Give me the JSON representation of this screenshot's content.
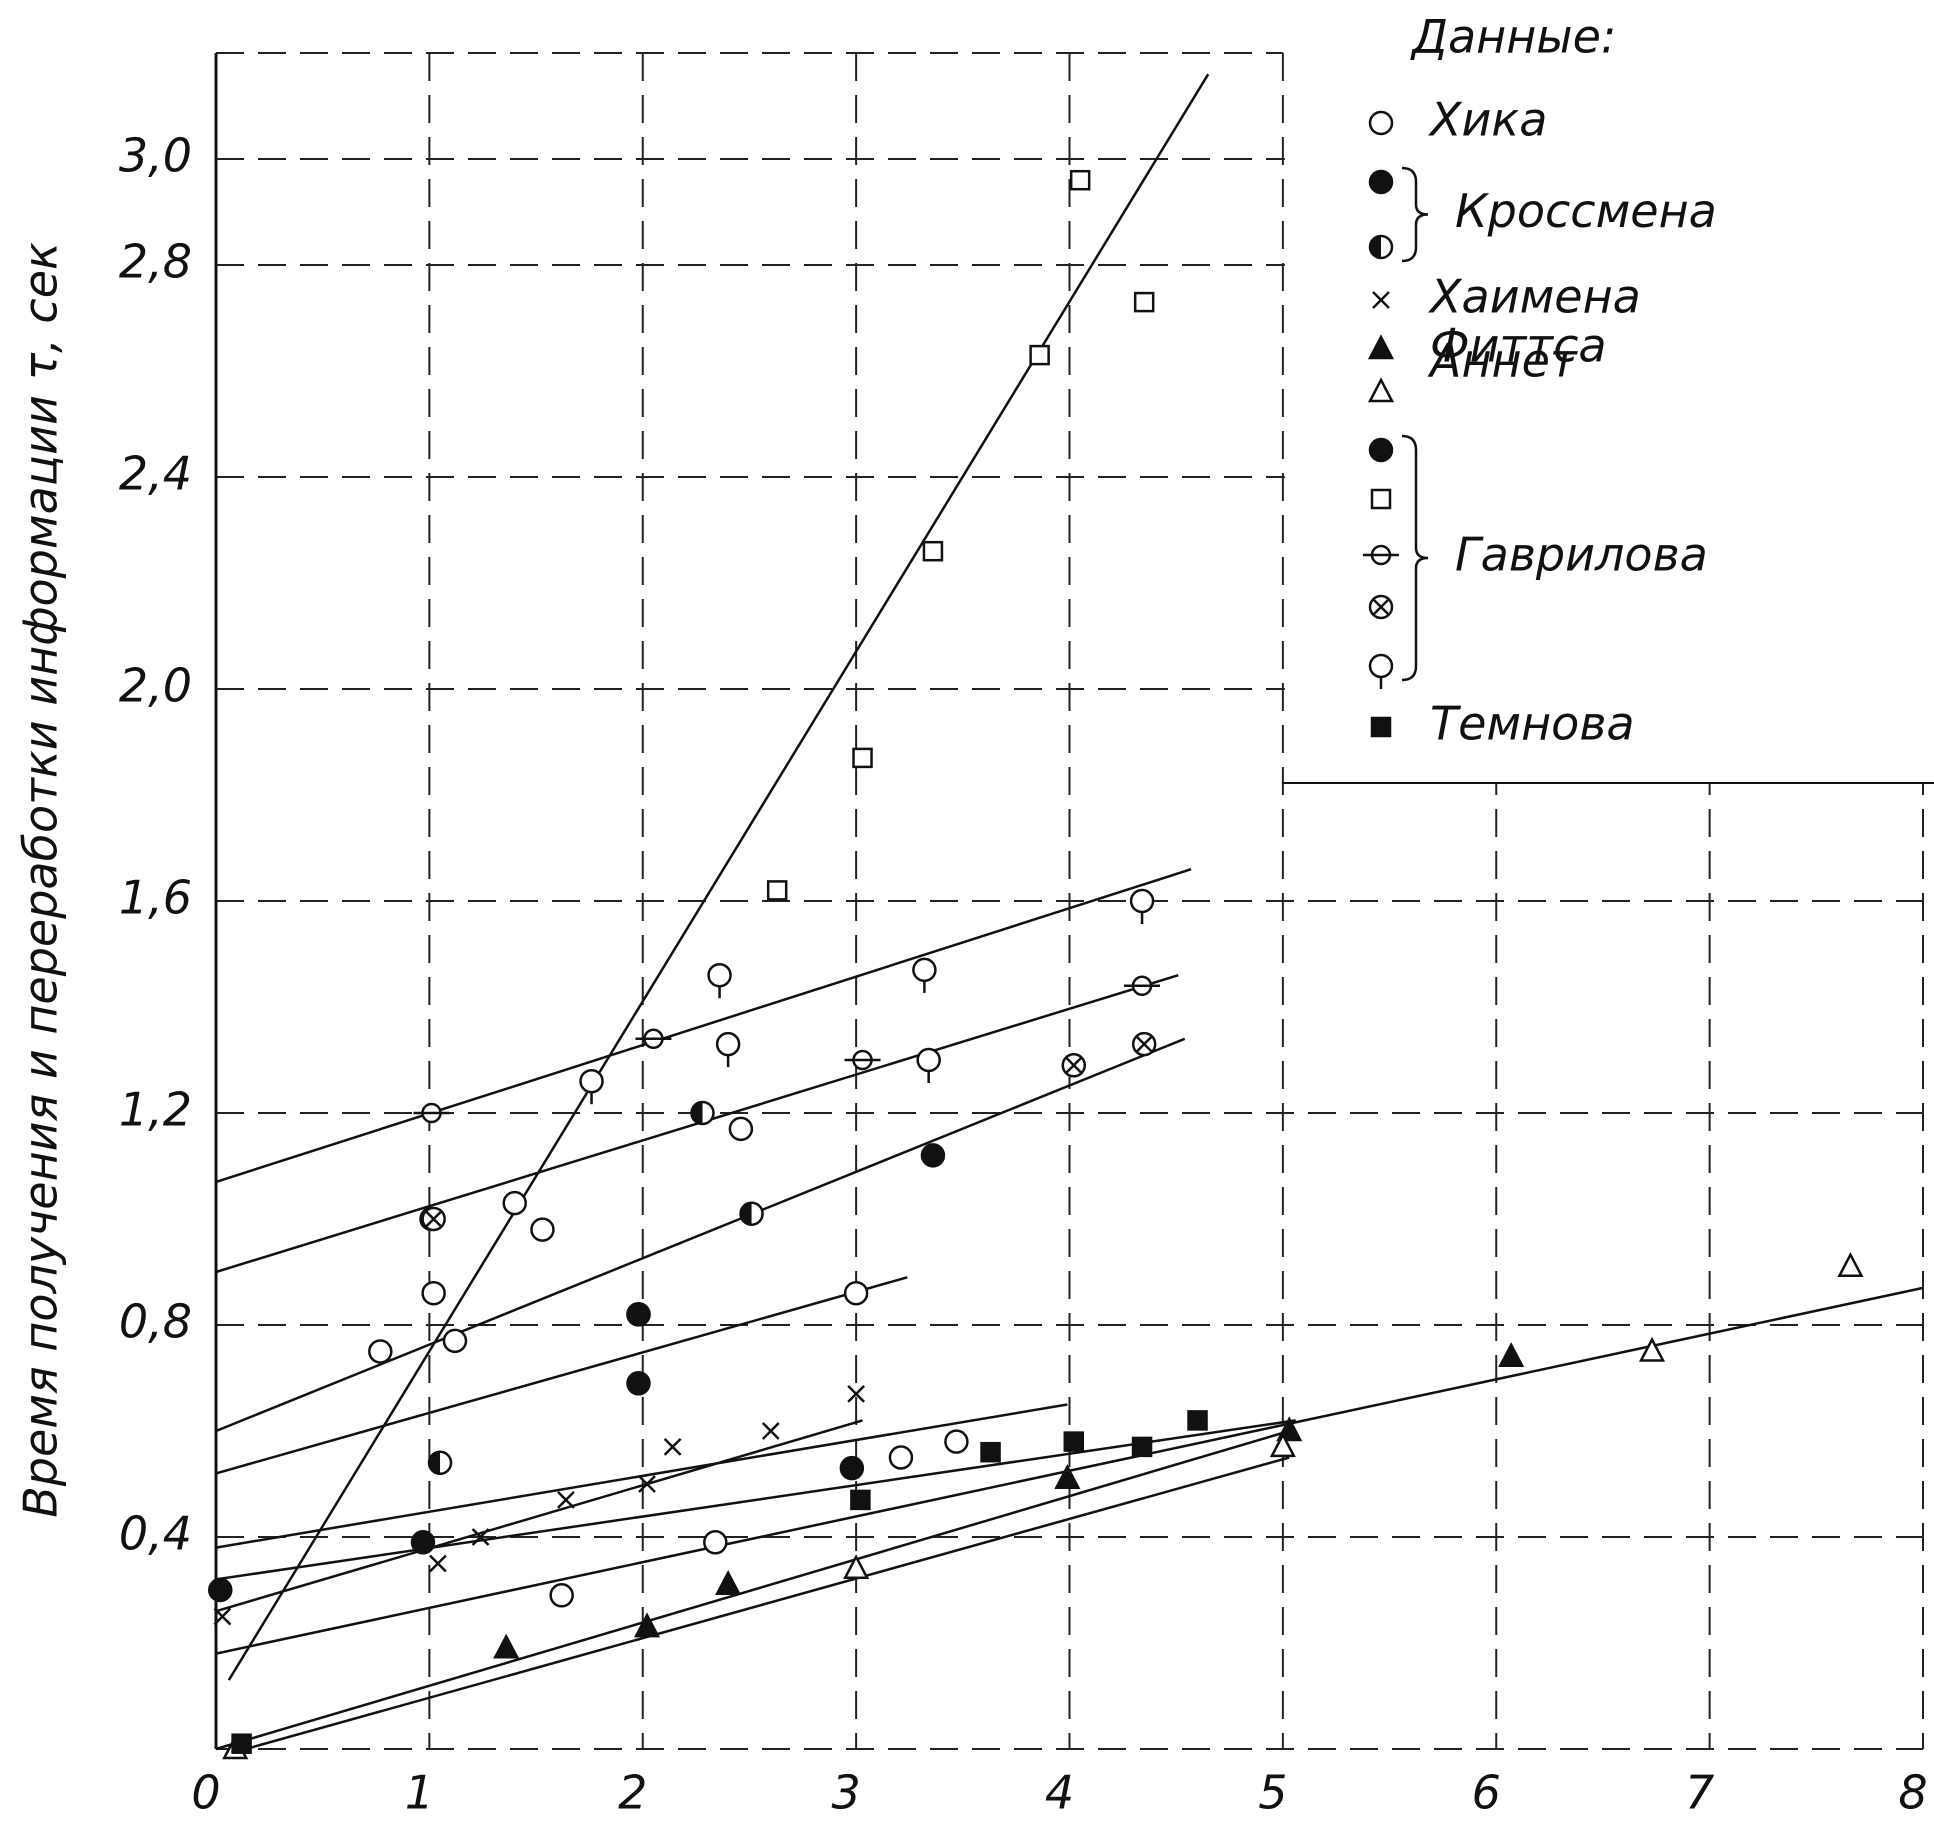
{
  "chart_data": {
    "type": "scatter",
    "ylabel": "Время получения и переработки информации τ, сек",
    "legend_title": "Данные:",
    "xlim": [
      0,
      8
    ],
    "ylim": [
      0,
      3.2
    ],
    "xticks": [
      0,
      1,
      2,
      3,
      4,
      5,
      6,
      7,
      8
    ],
    "yticks": [
      {
        "value": 0.4,
        "label": "0,4"
      },
      {
        "value": 0.8,
        "label": "0,8"
      },
      {
        "value": 1.2,
        "label": "1,2"
      },
      {
        "value": 1.6,
        "label": "1,6"
      },
      {
        "value": 2.0,
        "label": "2,0"
      },
      {
        "value": 2.4,
        "label": "2,4"
      },
      {
        "value": 2.8,
        "label": "2,8"
      },
      {
        "value": 3.0,
        "label": "3,0"
      }
    ],
    "grid": true,
    "legend": "upper right",
    "color": "#111",
    "series": [
      {
        "name": "Хика",
        "marker": "circle",
        "x": [
          0.77,
          1.02,
          1.12,
          1.4,
          1.53,
          2.46,
          3.0,
          3.21,
          3.47,
          2.34,
          1.62
        ],
        "values": [
          0.75,
          0.86,
          0.77,
          1.03,
          0.98,
          1.17,
          0.86,
          0.55,
          0.58,
          0.39,
          0.29
        ]
      },
      {
        "name": "Кроссмена",
        "marker": "filled",
        "x": [
          0.02,
          0.97,
          1.98,
          1.98,
          3.36,
          2.98
        ],
        "values": [
          0.3,
          0.39,
          0.69,
          0.82,
          1.12,
          0.53
        ]
      },
      {
        "name": "Кроссмена",
        "marker": "half",
        "x": [
          1.05,
          1.01,
          2.28,
          2.51
        ],
        "values": [
          0.54,
          1.0,
          1.2,
          1.01
        ]
      },
      {
        "name": "Хаимена",
        "marker": "cross",
        "x": [
          0.03,
          1.04,
          1.24,
          1.64,
          2.02,
          2.14,
          2.6,
          3.0
        ],
        "values": [
          0.25,
          0.35,
          0.4,
          0.47,
          0.5,
          0.57,
          0.6,
          0.67
        ]
      },
      {
        "name": "Фиттса",
        "marker": "tri-filled",
        "x": [
          1.36,
          2.02,
          2.4,
          3.99,
          5.03,
          6.07
        ],
        "values": [
          0.19,
          0.23,
          0.31,
          0.51,
          0.6,
          0.74
        ]
      },
      {
        "name": "Аннет",
        "marker": "tri",
        "x": [
          0.09,
          3.0,
          5.0,
          6.73,
          7.66
        ],
        "values": [
          0.0,
          0.34,
          0.57,
          0.75,
          0.91
        ]
      },
      {
        "name": "Гаврилова",
        "marker": "filled",
        "x": [
          1.98
        ],
        "values": [
          0.82
        ]
      },
      {
        "name": "Гаврилова",
        "marker": "square",
        "x": [
          2.63,
          3.03,
          3.36,
          3.86,
          4.05,
          4.35
        ],
        "values": [
          1.62,
          1.87,
          2.26,
          2.63,
          2.96,
          2.73
        ]
      },
      {
        "name": "Гаврилова",
        "marker": "phi",
        "x": [
          1.01,
          2.05,
          3.03,
          4.34
        ],
        "values": [
          1.2,
          1.34,
          1.3,
          1.44
        ]
      },
      {
        "name": "Гаврилова",
        "marker": "otimes",
        "x": [
          1.02,
          4.02,
          4.35
        ],
        "values": [
          1.0,
          1.29,
          1.33
        ]
      },
      {
        "name": "Гаврилова",
        "marker": "q",
        "x": [
          1.76,
          2.36,
          2.4,
          3.32,
          3.34,
          4.34
        ],
        "values": [
          1.26,
          1.46,
          1.33,
          1.47,
          1.3,
          1.6
        ]
      },
      {
        "name": "Темнова",
        "marker": "square-filled",
        "x": [
          0.12,
          3.02,
          3.63,
          4.02,
          4.34,
          4.6
        ],
        "values": [
          0.01,
          0.47,
          0.56,
          0.58,
          0.57,
          0.62
        ]
      }
    ],
    "trend_lines": [
      {
        "x": [
          0.06,
          4.65
        ],
        "y": [
          0.13,
          3.16
        ]
      },
      {
        "x": [
          0,
          4.57
        ],
        "y": [
          1.07,
          1.66
        ]
      },
      {
        "x": [
          0,
          4.51
        ],
        "y": [
          0.9,
          1.46
        ]
      },
      {
        "x": [
          0,
          4.54
        ],
        "y": [
          0.6,
          1.34
        ]
      },
      {
        "x": [
          0,
          3.24
        ],
        "y": [
          0.52,
          0.89
        ]
      },
      {
        "x": [
          0,
          3.99
        ],
        "y": [
          0.38,
          0.65
        ]
      },
      {
        "x": [
          0,
          5.06
        ],
        "y": [
          0.32,
          0.62
        ]
      },
      {
        "x": [
          0,
          3.03
        ],
        "y": [
          0.26,
          0.62
        ]
      },
      {
        "x": [
          0,
          8.0
        ],
        "y": [
          0.18,
          0.87
        ]
      },
      {
        "x": [
          0,
          5.03
        ],
        "y": [
          0.0,
          0.6
        ]
      },
      {
        "x": [
          0.14,
          5.03
        ],
        "y": [
          0.0,
          0.55
        ]
      }
    ]
  }
}
